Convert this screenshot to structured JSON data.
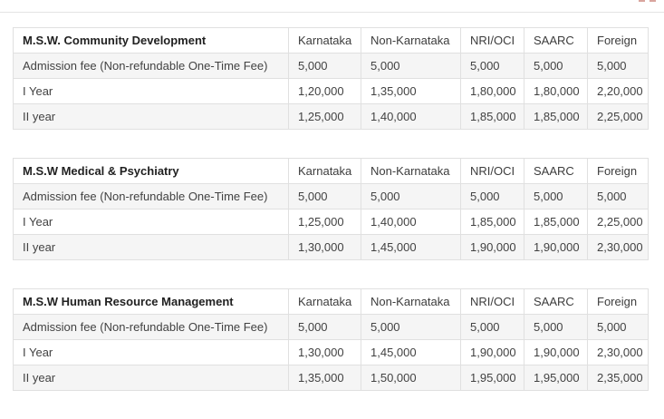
{
  "decorations": {
    "top_divider_color": "#e4e4e4",
    "corner_dash_color": "#d9a59e"
  },
  "colors": {
    "table_border": "#e0e0e0",
    "zebra_row_bg": "#f5f5f5",
    "title_text": "#212121",
    "cell_text": "#424242"
  },
  "tables": [
    {
      "title": "M.S.W. Community Development",
      "columns": [
        "Karnataka",
        "Non-Karnataka",
        "NRI/OCI",
        "SAARC",
        "Foreign"
      ],
      "rows": [
        {
          "label": "Admission fee (Non-refundable One-Time Fee)",
          "values": [
            "5,000",
            "5,000",
            "5,000",
            "5,000",
            "5,000"
          ]
        },
        {
          "label": "I Year",
          "values": [
            "1,20,000",
            "1,35,000",
            "1,80,000",
            "1,80,000",
            "2,20,000"
          ]
        },
        {
          "label": "II year",
          "values": [
            "1,25,000",
            "1,40,000",
            "1,85,000",
            "1,85,000",
            "2,25,000"
          ]
        }
      ]
    },
    {
      "title": "M.S.W Medical & Psychiatry",
      "columns": [
        "Karnataka",
        "Non-Karnataka",
        "NRI/OCI",
        "SAARC",
        "Foreign"
      ],
      "rows": [
        {
          "label": "Admission fee (Non-refundable One-Time Fee)",
          "values": [
            "5,000",
            "5,000",
            "5,000",
            "5,000",
            "5,000"
          ]
        },
        {
          "label": "I Year",
          "values": [
            "1,25,000",
            "1,40,000",
            "1,85,000",
            "1,85,000",
            "2,25,000"
          ]
        },
        {
          "label": "II year",
          "values": [
            "1,30,000",
            "1,45,000",
            "1,90,000",
            "1,90,000",
            "2,30,000"
          ]
        }
      ]
    },
    {
      "title": "M.S.W Human Resource Management",
      "columns": [
        "Karnataka",
        "Non-Karnataka",
        "NRI/OCI",
        "SAARC",
        "Foreign"
      ],
      "rows": [
        {
          "label": "Admission fee (Non-refundable One-Time Fee)",
          "values": [
            "5,000",
            "5,000",
            "5,000",
            "5,000",
            "5,000"
          ]
        },
        {
          "label": "I Year",
          "values": [
            "1,30,000",
            "1,45,000",
            "1,90,000",
            "1,90,000",
            "2,30,000"
          ]
        },
        {
          "label": "II year",
          "values": [
            "1,35,000",
            "1,50,000",
            "1,95,000",
            "1,95,000",
            "2,35,000"
          ]
        }
      ]
    }
  ]
}
